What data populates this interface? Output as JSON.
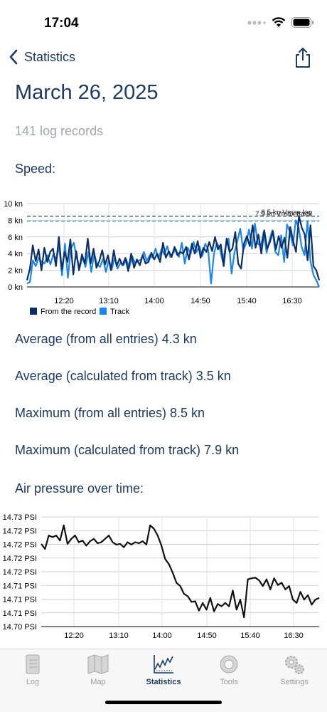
{
  "status": {
    "time": "17:04"
  },
  "nav": {
    "back_label": "Statistics"
  },
  "page": {
    "title": "March 26, 2025",
    "subtitle": "141 log records"
  },
  "speed": {
    "label": "Speed:",
    "stats": [
      "Average (from all entries) 4.3 kn",
      "Average (calculated from track) 3.5 kn",
      "Maximum (from all entries) 8.5 kn",
      "Maximum (calculated from track) 7.9 kn"
    ]
  },
  "pressure": {
    "label": "Air pressure over time:"
  },
  "colors": {
    "record": "#0b2f66",
    "track": "#1a86ef",
    "text": "#1c3a63"
  },
  "chart_data": [
    {
      "type": "line",
      "ylabel_unit": "kn",
      "yticks": [
        "0 kn",
        "2 kn",
        "4 kn",
        "6 kn",
        "8 kn",
        "10 kn"
      ],
      "ylim": [
        0,
        10
      ],
      "xticks": [
        "12:20",
        "13:10",
        "14:00",
        "14:50",
        "15:40",
        "16:30"
      ],
      "xlim_minutes": [
        11.9,
        17.0
      ],
      "grid": true,
      "legend_position": "bottom-left",
      "reference_lines": [
        {
          "label": "8.5 kn Vmax log",
          "value": 8.5
        },
        {
          "label": "7.9 kn Vmax track",
          "value": 7.9
        }
      ],
      "series": [
        {
          "name": "From the record",
          "values": [
            0.8,
            2.2,
            5.0,
            3.1,
            4.5,
            2.0,
            4.7,
            3.0,
            4.2,
            4.6,
            2.5,
            6.0,
            2.1,
            4.2,
            3.0,
            5.7,
            1.5,
            4.3,
            2.0,
            3.9,
            2.8,
            5.8,
            2.8,
            4.6,
            2.3,
            3.1,
            4.4,
            2.7,
            3.8,
            2.0,
            4.4,
            2.5,
            3.4,
            2.6,
            3.5,
            1.9,
            4.0,
            2.3,
            3.3,
            2.6,
            3.8,
            2.8,
            3.0,
            4.1,
            3.3,
            4.0,
            3.0,
            5.3,
            3.5,
            4.3,
            3.6,
            4.8,
            3.8,
            4.2,
            4.0,
            4.8,
            3.3,
            5.2,
            4.0,
            5.5,
            3.5,
            4.7,
            4.2,
            5.4,
            4.3,
            6.0,
            4.5,
            5.1,
            2.5,
            5.8,
            4.2,
            4.6,
            6.6,
            2.8,
            2.2,
            5.2,
            6.1,
            4.9,
            7.4,
            4.7,
            6.3,
            4.0,
            6.8,
            4.6,
            5.4,
            6.7,
            4.5,
            6.1,
            4.7,
            5.9,
            3.5,
            7.2,
            5.5,
            4.2,
            8.5,
            7.1,
            6.3,
            3.2,
            7.4,
            2.5,
            2.0,
            0.8
          ]
        },
        {
          "name": "Track",
          "values": [
            0.4,
            0.6,
            3.2,
            2.5,
            3.5,
            3.0,
            2.8,
            3.8,
            2.7,
            3.9,
            3.4,
            4.8,
            1.4,
            5.2,
            1.1,
            4.6,
            5.3,
            3.5,
            2.3,
            3.6,
            2.4,
            4.2,
            1.8,
            4.0,
            2.7,
            2.4,
            3.4,
            1.8,
            3.3,
            2.1,
            3.5,
            2.2,
            2.9,
            2.6,
            3.3,
            2.3,
            3.7,
            2.8,
            3.1,
            3.3,
            4.2,
            3.1,
            3.8,
            3.5,
            4.6,
            3.4,
            4.5,
            3.9,
            4.9,
            3.6,
            4.1,
            4.5,
            3.6,
            5.3,
            2.8,
            4.7,
            4.0,
            5.4,
            4.2,
            4.9,
            3.7,
            5.2,
            4.5,
            0.4,
            4.0,
            5.3,
            4.6,
            3.0,
            4.9,
            5.8,
            1.6,
            4.1,
            5.5,
            7.0,
            4.4,
            5.3,
            6.9,
            4.6,
            7.6,
            5.2,
            4.9,
            6.6,
            4.1,
            5.6,
            6.8,
            4.2,
            3.8,
            6.2,
            3.0,
            7.5,
            6.6,
            5.0,
            8.0,
            7.1,
            4.8,
            3.8,
            7.9,
            3.1,
            1.5,
            0.8,
            0.0
          ]
        }
      ]
    },
    {
      "type": "line",
      "yticks": [
        "14.73 PSI",
        "14.72 PSI",
        "14.72 PSI",
        "14.72 PSI",
        "14.72 PSI",
        "14.71 PSI",
        "14.71 PSI",
        "14.71 PSI",
        "14.70 PSI"
      ],
      "xticks": [
        "12:20",
        "13:10",
        "14:00",
        "14:50",
        "15:40",
        "16:30"
      ],
      "grid": true,
      "series": [
        {
          "name": "Air pressure",
          "values": [
            14.722,
            14.7205,
            14.7245,
            14.724,
            14.7245,
            14.723,
            14.7275,
            14.722,
            14.7235,
            14.7245,
            14.7225,
            14.723,
            14.7215,
            14.7228,
            14.7235,
            14.7222,
            14.7225,
            14.7235,
            14.7245,
            14.7225,
            14.7218,
            14.722,
            14.721,
            14.7225,
            14.7218,
            14.7225,
            14.7222,
            14.7228,
            14.7218,
            14.7275,
            14.7265,
            14.7245,
            14.7215,
            14.7175,
            14.716,
            14.7135,
            14.7105,
            14.7095,
            14.7072,
            14.7065,
            14.7048,
            14.705,
            14.7022,
            14.7045,
            14.7025,
            14.706,
            14.702,
            14.7042,
            14.7035,
            14.7045,
            14.7035,
            14.7082,
            14.7025,
            14.7055,
            14.7002,
            14.7115,
            14.7118,
            14.712,
            14.7112,
            14.7095,
            14.7115,
            14.7085,
            14.7118,
            14.7098,
            14.7105,
            14.7085,
            14.7095,
            14.7055,
            14.7045,
            14.7078,
            14.7055,
            14.7068,
            14.704,
            14.7055,
            14.706
          ]
        }
      ]
    }
  ],
  "tabs": [
    {
      "label": "Log",
      "icon": "notebook-icon"
    },
    {
      "label": "Map",
      "icon": "map-icon"
    },
    {
      "label": "Statistics",
      "icon": "chart-icon"
    },
    {
      "label": "Tools",
      "icon": "lifebuoy-icon"
    },
    {
      "label": "Settings",
      "icon": "gears-icon"
    }
  ]
}
